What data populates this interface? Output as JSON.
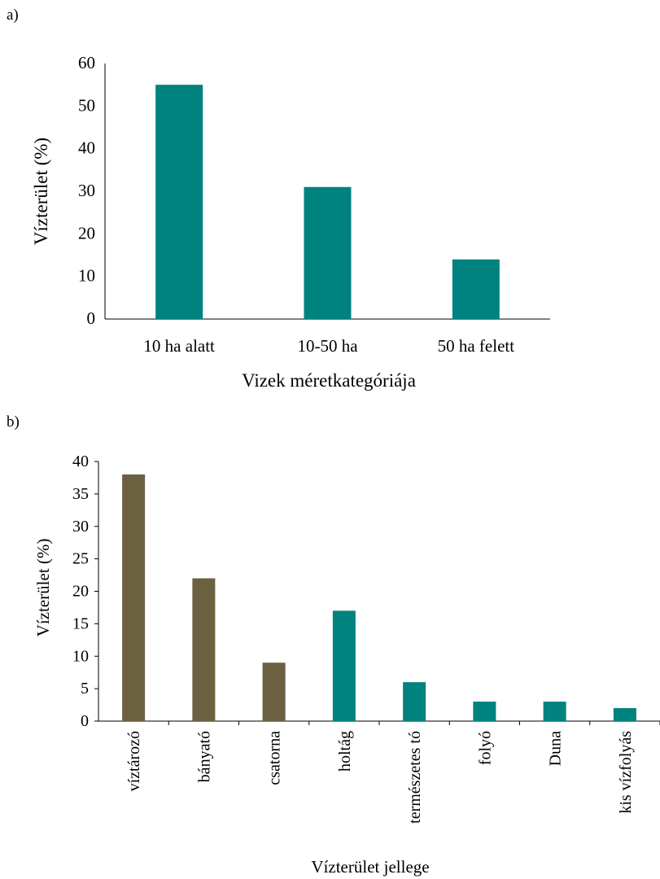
{
  "panels": {
    "a_label": "a)",
    "b_label": "b)"
  },
  "colors": {
    "teal": "#00827f",
    "olive": "#6b6040",
    "axis": "#000000"
  },
  "chart_data": [
    {
      "id": "a",
      "type": "bar",
      "categories": [
        "10 ha alatt",
        "10-50 ha",
        "50 ha felett"
      ],
      "values": [
        55,
        31,
        14
      ],
      "bar_colors": [
        "#00827f",
        "#00827f",
        "#00827f"
      ],
      "title": "",
      "xlabel": "Vizek méretkategóriája",
      "ylabel": "Vízterület (%)",
      "ylim": [
        0,
        60
      ],
      "yticks": [
        0,
        10,
        20,
        30,
        40,
        50,
        60
      ],
      "grid": false,
      "legend": "none"
    },
    {
      "id": "b",
      "type": "bar",
      "categories": [
        "víztározó",
        "bányató",
        "csatorna",
        "holtág",
        "természetes tó",
        "folyó",
        "Duna",
        "kis vízfolyás"
      ],
      "values": [
        38,
        22,
        9,
        17,
        6,
        3,
        3,
        2
      ],
      "bar_colors": [
        "#6b6040",
        "#6b6040",
        "#6b6040",
        "#00827f",
        "#00827f",
        "#00827f",
        "#00827f",
        "#00827f"
      ],
      "title": "",
      "xlabel": "Vízterület jellege",
      "ylabel": "Vízterület (%)",
      "ylim": [
        0,
        40
      ],
      "yticks": [
        0,
        5,
        10,
        15,
        20,
        25,
        30,
        35,
        40
      ],
      "grid": false,
      "legend": "none"
    }
  ]
}
